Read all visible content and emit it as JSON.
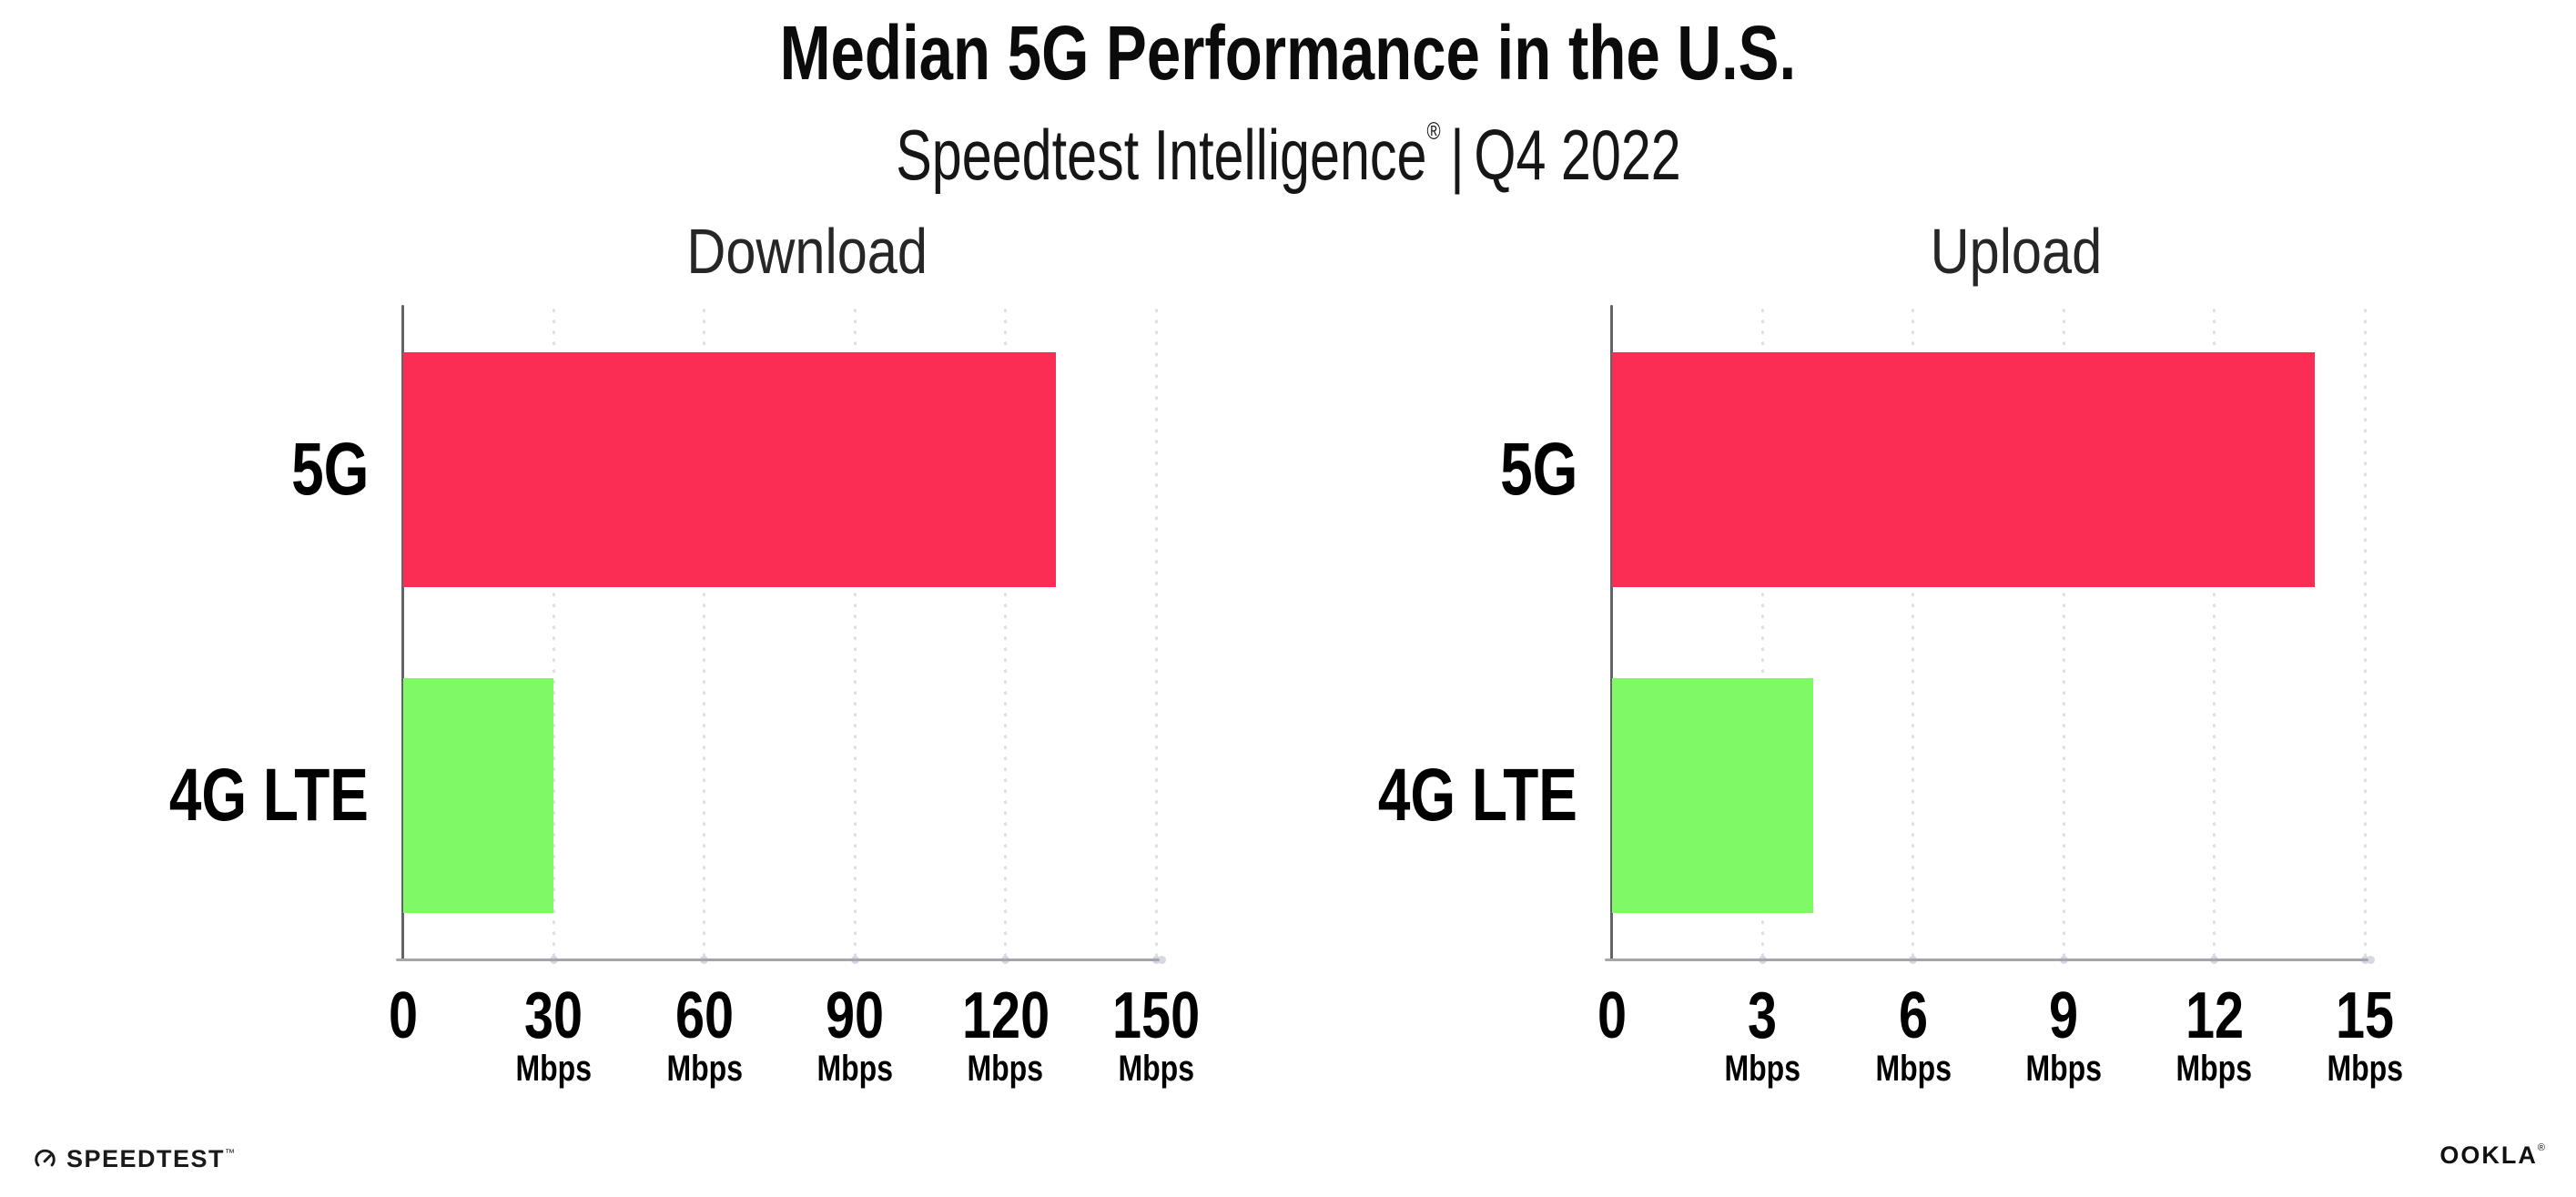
{
  "header": {
    "title": "Median 5G Performance in the U.S.",
    "subtitle": {
      "brand": "Speedtest Intelligence",
      "registered": "®",
      "separator": "|",
      "period": "Q4 2022"
    }
  },
  "chart_data": [
    {
      "type": "bar",
      "orientation": "horizontal",
      "title": "Download",
      "categories": [
        "5G",
        "4G LTE"
      ],
      "values": [
        130,
        30
      ],
      "unit": "Mbps",
      "xlim": [
        0,
        150
      ],
      "xticks": [
        0,
        30,
        60,
        90,
        120,
        150
      ],
      "xtick_unit_label": "Mbps",
      "bar_colors": [
        "#fc2d55",
        "#80f966"
      ],
      "grid": "dotted-vertical",
      "legend": "none"
    },
    {
      "type": "bar",
      "orientation": "horizontal",
      "title": "Upload",
      "categories": [
        "5G",
        "4G LTE"
      ],
      "values": [
        14,
        4
      ],
      "unit": "Mbps",
      "xlim": [
        0,
        15
      ],
      "xticks": [
        0,
        3,
        6,
        9,
        12,
        15
      ],
      "xtick_unit_label": "Mbps",
      "bar_colors": [
        "#fc2d55",
        "#80f966"
      ],
      "grid": "dotted-vertical",
      "legend": "none"
    }
  ],
  "footer": {
    "speedtest_logo_text": "SPEEDTEST",
    "speedtest_trademark": "™",
    "ookla_logo_text": "OOKLA",
    "ookla_registered": "®"
  },
  "colors": {
    "background": "#ffffff",
    "bar_5g": "#fc2d55",
    "bar_4g_lte": "#80f966",
    "y_axis": "#63636a",
    "x_axis": "#a5a5ad",
    "gridline": "#dedee9",
    "title_text": "#0b0b0b",
    "chart_title_text": "#262626"
  }
}
